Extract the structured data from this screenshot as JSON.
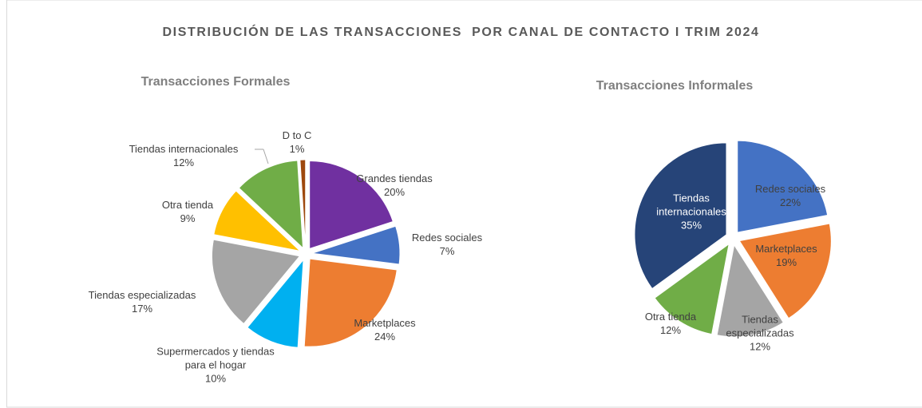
{
  "title": "DISTRIBUCIÓN DE LAS TRANSACCIONES  POR CANAL DE CONTACTO I TRIM 2024",
  "chart_data": [
    {
      "type": "pie",
      "title": "Transacciones Formales",
      "categories": [
        "Grandes tiendas",
        "Redes sociales",
        "Marketplaces",
        "Supermercados y tiendas para el hogar",
        "Tiendas especializadas",
        "Otra tienda",
        "Tiendas internacionales",
        "D to C"
      ],
      "values": [
        20,
        7,
        24,
        10,
        17,
        9,
        12,
        1
      ],
      "value_labels": [
        "20%",
        "7%",
        "24%",
        "10%",
        "17%",
        "9%",
        "12%",
        "1%"
      ],
      "colors": [
        "#7030a0",
        "#4472c4",
        "#ed7d31",
        "#00b0f0",
        "#a5a5a5",
        "#ffc000",
        "#70ad47",
        "#9e480e"
      ]
    },
    {
      "type": "pie",
      "title": "Transacciones Informales",
      "categories": [
        "Redes sociales",
        "Marketplaces",
        "Tiendas especializadas",
        "Otra tienda",
        "Tiendas internacionales"
      ],
      "values": [
        22,
        19,
        12,
        12,
        35
      ],
      "value_labels": [
        "22%",
        "19%",
        "12%",
        "12%",
        "35%"
      ],
      "colors": [
        "#4472c4",
        "#ed7d31",
        "#a5a5a5",
        "#70ad47",
        "#264478"
      ]
    }
  ]
}
